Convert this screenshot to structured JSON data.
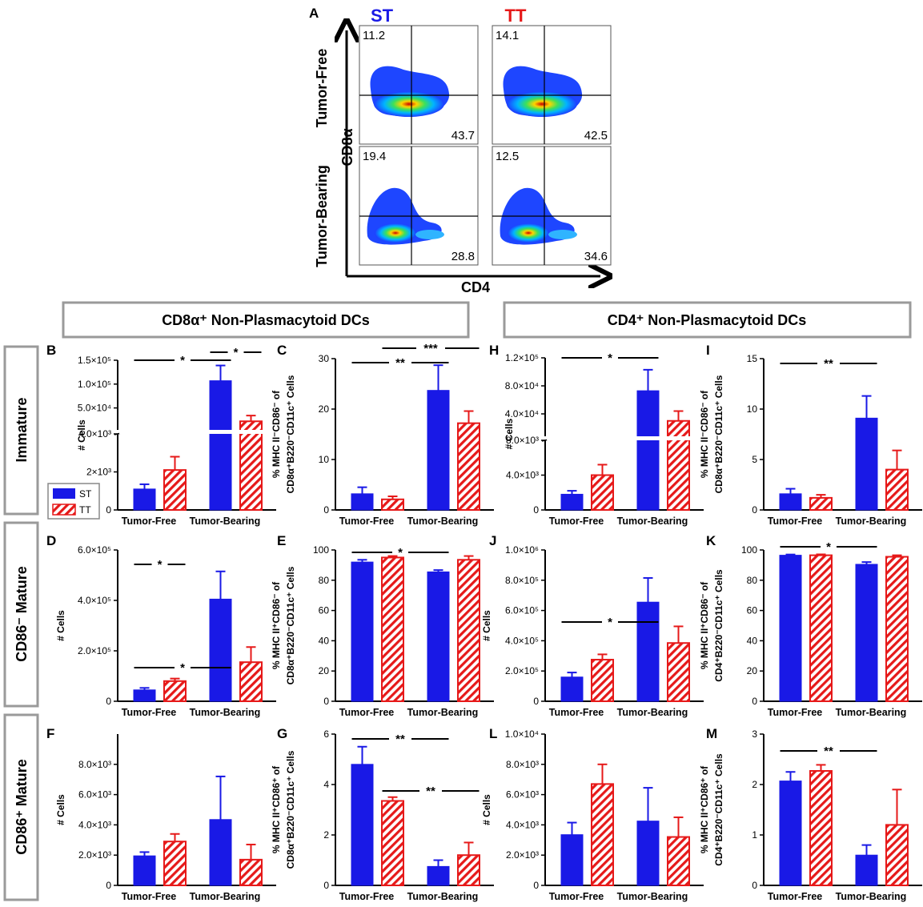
{
  "colors": {
    "st": "#1919e6",
    "tt": "#e61919",
    "axis": "#000000",
    "box": "#9a9a9a"
  },
  "panel_a": {
    "letter": "A",
    "columns": [
      "ST",
      "TT"
    ],
    "rows": [
      "Tumor-Free",
      "Tumor-Bearing"
    ],
    "xlabel": "CD4",
    "ylabel": "CD8α",
    "quadrants": [
      {
        "row": 0,
        "col": 0,
        "top_left": "11.2",
        "bottom_right": "43.7"
      },
      {
        "row": 0,
        "col": 1,
        "top_left": "14.1",
        "bottom_right": "42.5"
      },
      {
        "row": 1,
        "col": 0,
        "top_left": "19.4",
        "bottom_right": "28.8"
      },
      {
        "row": 1,
        "col": 1,
        "top_left": "12.5",
        "bottom_right": "34.6"
      }
    ]
  },
  "section_titles": {
    "left": "CD8α⁺ Non-Plasmacytoid DCs",
    "right": "CD4⁺ Non-Plasmacytoid DCs"
  },
  "row_labels": [
    "Immature",
    "CD86⁻ Mature",
    "CD86⁺ Mature"
  ],
  "legend": [
    "ST",
    "TT"
  ],
  "chart_data": [
    {
      "id": "B",
      "type": "bar",
      "categories": [
        "Tumor-Free",
        "Tumor-Bearing"
      ],
      "series": [
        {
          "name": "ST",
          "values": [
            1100,
            107000
          ],
          "errors": [
            250,
            32000
          ]
        },
        {
          "name": "TT",
          "values": [
            2100,
            22000
          ],
          "errors": [
            700,
            12000
          ]
        }
      ],
      "ylabel": "# Cells",
      "broken_axis": true,
      "ylim_lower": [
        0,
        4000
      ],
      "yticks_lower": [
        "0",
        "2×10³",
        "4.0×10³"
      ],
      "ylim_upper": [
        0,
        150000
      ],
      "yticks_upper": [
        "5.0×10⁴",
        "1.0×10⁵",
        "1.5×10⁵"
      ],
      "significance": [
        {
          "label": "*",
          "from": "ST Tumor-Free",
          "to": "ST Tumor-Bearing"
        },
        {
          "label": "*",
          "from": "ST Tumor-Bearing",
          "to": "TT Tumor-Bearing"
        }
      ]
    },
    {
      "id": "C",
      "type": "bar",
      "categories": [
        "Tumor-Free",
        "Tumor-Bearing"
      ],
      "series": [
        {
          "name": "ST",
          "values": [
            3.2,
            23.7
          ],
          "errors": [
            1.3,
            5
          ]
        },
        {
          "name": "TT",
          "values": [
            2.1,
            17.2
          ],
          "errors": [
            0.6,
            2.4
          ]
        }
      ],
      "ylabel": "% MHC II⁻CD86⁻ of CD8α⁺B220⁻CD11c⁺ Cells",
      "ylim": [
        0,
        30
      ],
      "yticks": [
        "0",
        "10",
        "20",
        "30"
      ],
      "significance": [
        {
          "label": "**",
          "from": "ST Tumor-Free",
          "to": "ST Tumor-Bearing"
        },
        {
          "label": "***",
          "from": "TT Tumor-Free",
          "to": "TT Tumor-Bearing"
        }
      ]
    },
    {
      "id": "H",
      "type": "bar",
      "categories": [
        "Tumor-Free",
        "Tumor-Bearing"
      ],
      "series": [
        {
          "name": "ST",
          "values": [
            1800,
            73000
          ],
          "errors": [
            400,
            30000
          ]
        },
        {
          "name": "TT",
          "values": [
            4000,
            30000
          ],
          "errors": [
            1200,
            14000
          ]
        }
      ],
      "ylabel": "# Cells",
      "broken_axis": true,
      "ylim_lower": [
        0,
        8000
      ],
      "yticks_lower": [
        "0",
        "4.0×10³",
        "8.0×10³"
      ],
      "ylim_upper": [
        0,
        120000
      ],
      "yticks_upper": [
        "4.0×10⁴",
        "8.0×10⁴",
        "1.2×10⁵"
      ],
      "significance": [
        {
          "label": "*",
          "from": "ST Tumor-Free",
          "to": "ST Tumor-Bearing"
        }
      ]
    },
    {
      "id": "I",
      "type": "bar",
      "categories": [
        "Tumor-Free",
        "Tumor-Bearing"
      ],
      "series": [
        {
          "name": "ST",
          "values": [
            1.6,
            9.1
          ],
          "errors": [
            0.5,
            2.2
          ]
        },
        {
          "name": "TT",
          "values": [
            1.2,
            4.0
          ],
          "errors": [
            0.3,
            1.9
          ]
        }
      ],
      "ylabel": "% MHC II⁻CD86⁻ of CD8α⁺B220⁻CD11c⁺ Cells",
      "ylim": [
        0,
        15
      ],
      "yticks": [
        "0",
        "5",
        "10",
        "15"
      ],
      "significance": [
        {
          "label": "**",
          "from": "ST Tumor-Free",
          "to": "ST Tumor-Bearing"
        }
      ]
    },
    {
      "id": "D",
      "type": "bar",
      "categories": [
        "Tumor-Free",
        "Tumor-Bearing"
      ],
      "series": [
        {
          "name": "ST",
          "values": [
            45000,
            405000
          ],
          "errors": [
            8000,
            110000
          ]
        },
        {
          "name": "TT",
          "values": [
            80000,
            155000
          ],
          "errors": [
            10000,
            60000
          ]
        }
      ],
      "ylabel": "# Cells",
      "ylim": [
        0,
        600000
      ],
      "yticks": [
        "0",
        "2.0×10⁵",
        "4.0×10⁵",
        "6.0×10⁵"
      ],
      "significance": [
        {
          "label": "*",
          "from": "ST Tumor-Free",
          "to": "TT Tumor-Free"
        },
        {
          "label": "*",
          "from": "ST Tumor-Free",
          "to": "ST Tumor-Bearing"
        }
      ]
    },
    {
      "id": "E",
      "type": "bar",
      "categories": [
        "Tumor-Free",
        "Tumor-Bearing"
      ],
      "series": [
        {
          "name": "ST",
          "values": [
            92,
            85.5
          ],
          "errors": [
            1.5,
            1.2
          ]
        },
        {
          "name": "TT",
          "values": [
            95,
            93.5
          ],
          "errors": [
            1,
            2.5
          ]
        }
      ],
      "ylabel": "% MHC II⁺CD86⁻ of CD8α⁺B220⁻CD11c⁺ Cells",
      "ylim": [
        0,
        100
      ],
      "yticks": [
        "0",
        "20",
        "40",
        "60",
        "80",
        "100"
      ],
      "significance": [
        {
          "label": "*",
          "from": "ST Tumor-Free",
          "to": "ST Tumor-Bearing"
        }
      ]
    },
    {
      "id": "J",
      "type": "bar",
      "categories": [
        "Tumor-Free",
        "Tumor-Bearing"
      ],
      "series": [
        {
          "name": "ST",
          "values": [
            160000,
            655000
          ],
          "errors": [
            30000,
            160000
          ]
        },
        {
          "name": "TT",
          "values": [
            275000,
            385000
          ],
          "errors": [
            35000,
            110000
          ]
        }
      ],
      "ylabel": "# Cells",
      "ylim": [
        0,
        1000000
      ],
      "yticks": [
        "0",
        "2.0×10⁵",
        "4.0×10⁵",
        "6.0×10⁵",
        "8.0×10⁵",
        "1.0×10⁶"
      ],
      "significance": [
        {
          "label": "*",
          "from": "ST Tumor-Free",
          "to": "ST Tumor-Bearing"
        }
      ]
    },
    {
      "id": "K",
      "type": "bar",
      "categories": [
        "Tumor-Free",
        "Tumor-Bearing"
      ],
      "series": [
        {
          "name": "ST",
          "values": [
            96.5,
            90.5
          ],
          "errors": [
            0.5,
            1.5
          ]
        },
        {
          "name": "TT",
          "values": [
            96.5,
            95.5
          ],
          "errors": [
            0.6,
            1
          ]
        }
      ],
      "ylabel": "% MHC II⁺CD86⁻ of CD4⁺B220⁻CD11c⁺ Cells",
      "ylim": [
        0,
        100
      ],
      "yticks": [
        "0",
        "20",
        "40",
        "60",
        "80",
        "100"
      ],
      "significance": [
        {
          "label": "*",
          "from": "ST Tumor-Free",
          "to": "ST Tumor-Bearing"
        }
      ]
    },
    {
      "id": "F",
      "type": "bar",
      "categories": [
        "Tumor-Free",
        "Tumor-Bearing"
      ],
      "series": [
        {
          "name": "ST",
          "values": [
            1950,
            4350
          ],
          "errors": [
            250,
            2850
          ]
        },
        {
          "name": "TT",
          "values": [
            2900,
            1700
          ],
          "errors": [
            500,
            1000
          ]
        }
      ],
      "ylabel": "# Cells",
      "ylim": [
        0,
        10000
      ],
      "yticks": [
        "0",
        "2.0×10³",
        "4.0×10³",
        "6.0×10³",
        "8.0×10³"
      ],
      "significance": []
    },
    {
      "id": "G",
      "type": "bar",
      "categories": [
        "Tumor-Free",
        "Tumor-Bearing"
      ],
      "series": [
        {
          "name": "ST",
          "values": [
            4.8,
            0.75
          ],
          "errors": [
            0.7,
            0.25
          ]
        },
        {
          "name": "TT",
          "values": [
            3.35,
            1.2
          ],
          "errors": [
            0.15,
            0.5
          ]
        }
      ],
      "ylabel": "% MHC II⁺CD86⁺ of CD8α⁺B220⁻CD11c⁺ Cells",
      "ylim": [
        0,
        6
      ],
      "yticks": [
        "0",
        "2",
        "4",
        "6"
      ],
      "significance": [
        {
          "label": "**",
          "from": "ST Tumor-Free",
          "to": "ST Tumor-Bearing"
        },
        {
          "label": "**",
          "from": "TT Tumor-Free",
          "to": "TT Tumor-Bearing"
        }
      ]
    },
    {
      "id": "L",
      "type": "bar",
      "categories": [
        "Tumor-Free",
        "Tumor-Bearing"
      ],
      "series": [
        {
          "name": "ST",
          "values": [
            3350,
            4250
          ],
          "errors": [
            800,
            2200
          ]
        },
        {
          "name": "TT",
          "values": [
            6700,
            3200
          ],
          "errors": [
            1300,
            1300
          ]
        }
      ],
      "ylabel": "# Cells",
      "ylim": [
        0,
        10000
      ],
      "yticks": [
        "0",
        "2.0×10³",
        "4.0×10³",
        "6.0×10³",
        "8.0×10³",
        "1.0×10⁴"
      ],
      "significance": []
    },
    {
      "id": "M",
      "type": "bar",
      "categories": [
        "Tumor-Free",
        "Tumor-Bearing"
      ],
      "series": [
        {
          "name": "ST",
          "values": [
            2.07,
            0.6
          ],
          "errors": [
            0.18,
            0.2
          ]
        },
        {
          "name": "TT",
          "values": [
            2.27,
            1.2
          ],
          "errors": [
            0.12,
            0.7
          ]
        }
      ],
      "ylabel": "% MHC II⁺CD86⁺ of CD4⁺B220⁻CD11c⁺ Cells",
      "ylim": [
        0,
        3
      ],
      "yticks": [
        "0",
        "1",
        "2",
        "3"
      ],
      "significance": [
        {
          "label": "**",
          "from": "ST Tumor-Free",
          "to": "ST Tumor-Bearing"
        }
      ]
    }
  ]
}
